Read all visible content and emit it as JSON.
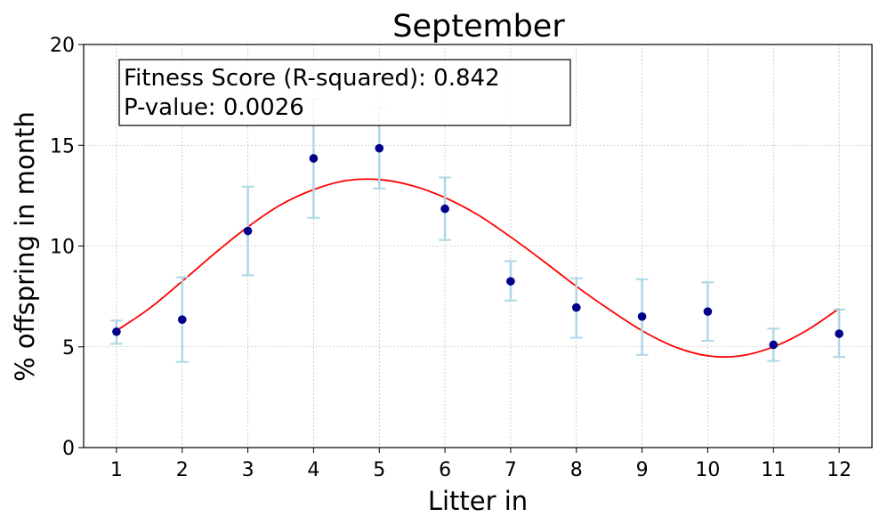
{
  "chart_data": {
    "type": "scatter",
    "title": "September",
    "xlabel": "Litter in",
    "ylabel": "% offspring in month",
    "xlim": [
      0.5,
      12.5
    ],
    "ylim": [
      0,
      20
    ],
    "x_ticks": [
      1,
      2,
      3,
      4,
      5,
      6,
      7,
      8,
      9,
      10,
      11,
      12
    ],
    "y_ticks": [
      0,
      5,
      10,
      15,
      20
    ],
    "grid": true,
    "points": {
      "x": [
        1,
        2,
        3,
        4,
        5,
        6,
        7,
        8,
        9,
        10,
        11,
        12
      ],
      "y": [
        5.75,
        6.35,
        10.75,
        14.35,
        14.85,
        11.85,
        8.25,
        6.95,
        6.5,
        6.75,
        5.1,
        5.65
      ],
      "yerr_low": [
        5.15,
        4.25,
        8.55,
        11.4,
        12.85,
        10.3,
        7.3,
        5.45,
        4.6,
        5.3,
        4.3,
        4.5
      ],
      "yerr_high": [
        6.3,
        8.45,
        12.95,
        17.3,
        16.85,
        13.4,
        9.25,
        8.4,
        8.35,
        8.2,
        5.9,
        6.85
      ],
      "color": "#00008b",
      "errorbar_color": "#add8e6"
    },
    "fit_curve": {
      "x": [
        1,
        1.5,
        2,
        2.5,
        3,
        3.5,
        4,
        4.5,
        5,
        5.5,
        6,
        6.5,
        7,
        7.5,
        8,
        8.5,
        9,
        9.5,
        10,
        10.5,
        11,
        11.5,
        12
      ],
      "y": [
        5.8,
        6.9,
        8.25,
        9.65,
        10.95,
        12.05,
        12.8,
        13.25,
        13.3,
        13.0,
        12.4,
        11.55,
        10.45,
        9.25,
        8.0,
        6.85,
        5.8,
        5.0,
        4.55,
        4.55,
        5.0,
        5.8,
        6.9
      ],
      "color": "#ff0000"
    },
    "annotation": {
      "line1": "Fitness Score (R-squared): 0.842",
      "line2": "P-value: 0.0026"
    }
  }
}
